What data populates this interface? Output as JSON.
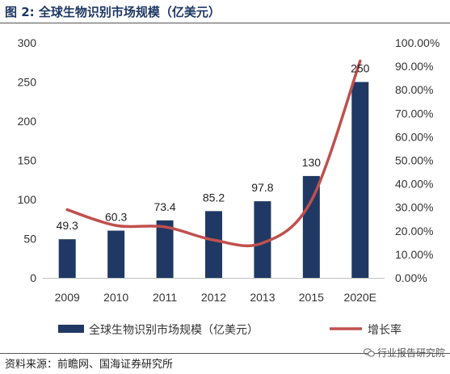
{
  "figure": {
    "title": "图 2:  全球生物识别市场规模（亿美元）",
    "source": "资料来源：前瞻网、国海证券研究所",
    "watermark": "行业报告研究院"
  },
  "chart_data": {
    "type": "bar",
    "categories": [
      "2009",
      "2010",
      "2011",
      "2012",
      "2013",
      "2015",
      "2020E"
    ],
    "series": [
      {
        "name": "全球生物识别市场规模（亿美元）",
        "type": "bar",
        "axis": "left",
        "color": "#203864",
        "values": [
          49.3,
          60.3,
          73.4,
          85.2,
          97.8,
          130,
          250
        ],
        "labels": [
          "49.3",
          "60.3",
          "73.4",
          "85.2",
          "97.8",
          "130",
          "250"
        ]
      },
      {
        "name": "增长率",
        "type": "line",
        "axis": "right",
        "color": "#c0504d",
        "values": [
          0.29,
          0.223,
          0.217,
          0.161,
          0.148,
          0.329,
          0.923
        ]
      }
    ],
    "y_left": {
      "min": 0,
      "max": 300,
      "ticks": [
        0,
        50,
        100,
        150,
        200,
        250,
        300
      ],
      "tick_labels": [
        "0",
        "50",
        "100",
        "150",
        "200",
        "250",
        "300"
      ]
    },
    "y_right": {
      "min": 0,
      "max": 1,
      "ticks": [
        0,
        0.1,
        0.2,
        0.3,
        0.4,
        0.5,
        0.6,
        0.7,
        0.8,
        0.9,
        1
      ],
      "tick_labels": [
        "0.00%",
        "10.00%",
        "20.00%",
        "30.00%",
        "40.00%",
        "50.00%",
        "60.00%",
        "70.00%",
        "80.00%",
        "90.00%",
        "100.00%"
      ]
    },
    "grid": false,
    "legend_position": "bottom"
  }
}
